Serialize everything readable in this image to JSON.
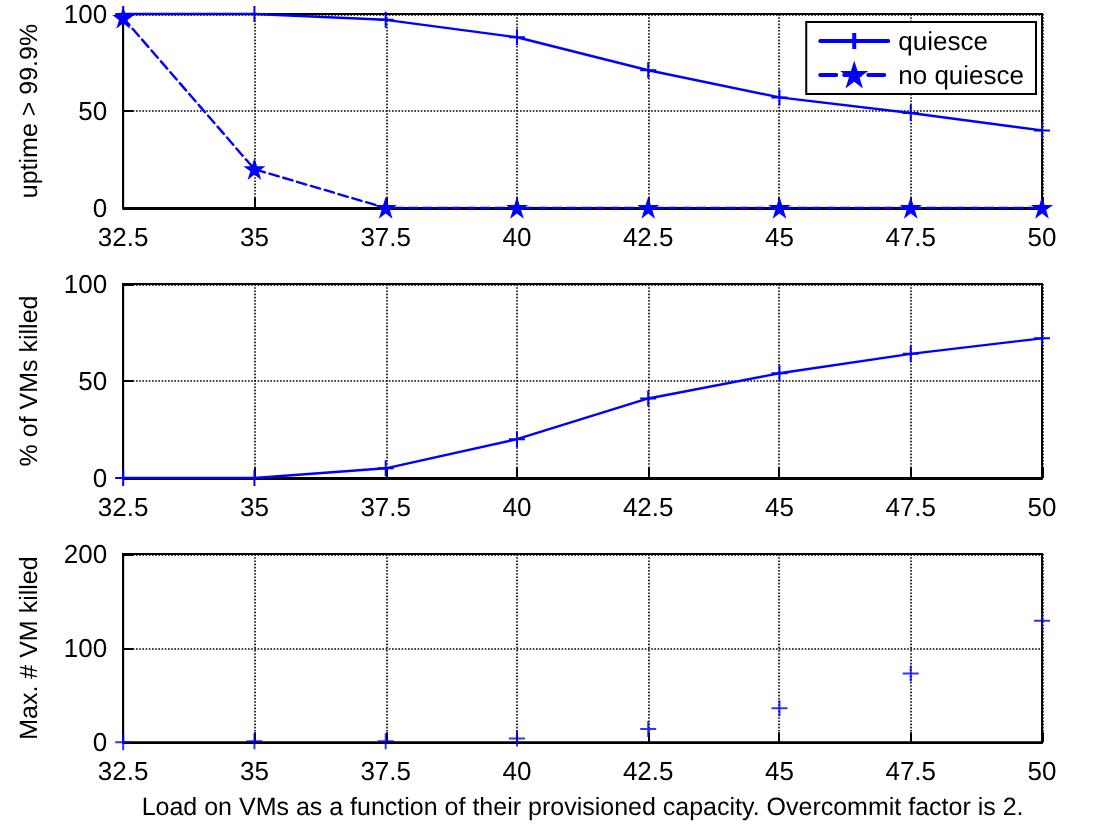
{
  "chart_data": [
    {
      "type": "line",
      "ylabel": "uptime > 99.9%",
      "x": [
        32.5,
        35,
        37.5,
        40,
        42.5,
        45,
        47.5,
        50
      ],
      "xlim": [
        32.5,
        50
      ],
      "xticks": [
        32.5,
        35,
        37.5,
        40,
        42.5,
        45,
        47.5,
        50
      ],
      "ylim": [
        0,
        100
      ],
      "yticks": [
        0,
        50,
        100
      ],
      "grid": true,
      "legend": "top right",
      "series": [
        {
          "name": "quiesce",
          "color": "#0000ff",
          "marker": "cross",
          "line_style": "solid",
          "values": [
            100,
            100,
            97,
            88,
            71,
            57,
            49,
            40
          ]
        },
        {
          "name": "no quiesce",
          "color": "#0000ff",
          "marker": "star",
          "line_style": "dashed",
          "values": [
            98,
            20,
            0,
            0,
            0,
            0,
            0,
            0
          ]
        }
      ]
    },
    {
      "type": "line",
      "ylabel": "% of VMs killed",
      "x": [
        32.5,
        35,
        37.5,
        40,
        42.5,
        45,
        47.5,
        50
      ],
      "xlim": [
        32.5,
        50
      ],
      "xticks": [
        32.5,
        35,
        37.5,
        40,
        42.5,
        45,
        47.5,
        50
      ],
      "ylim": [
        0,
        100
      ],
      "yticks": [
        0,
        50,
        100
      ],
      "grid": true,
      "marker": "cross",
      "line_style": "solid",
      "series": [
        {
          "color": "#0000ff",
          "values": [
            0,
            0,
            5,
            20,
            41,
            54,
            64,
            72
          ]
        }
      ]
    },
    {
      "type": "scatter",
      "ylabel": "Max. # VM killed",
      "xlabel": "Load on VMs as a function of their provisioned capacity. Overcommit factor is 2.",
      "x": [
        32.5,
        35,
        37.5,
        40,
        42.5,
        45,
        47.5,
        50
      ],
      "xlim": [
        32.5,
        50
      ],
      "xticks": [
        32.5,
        35,
        37.5,
        40,
        42.5,
        45,
        47.5,
        50
      ],
      "ylim": [
        0,
        200
      ],
      "yticks": [
        0,
        100,
        200
      ],
      "grid": true,
      "marker": "cross",
      "series": [
        {
          "color": "#0000ff",
          "values": [
            0,
            1,
            1,
            4,
            14,
            36,
            73,
            129
          ]
        }
      ]
    }
  ]
}
